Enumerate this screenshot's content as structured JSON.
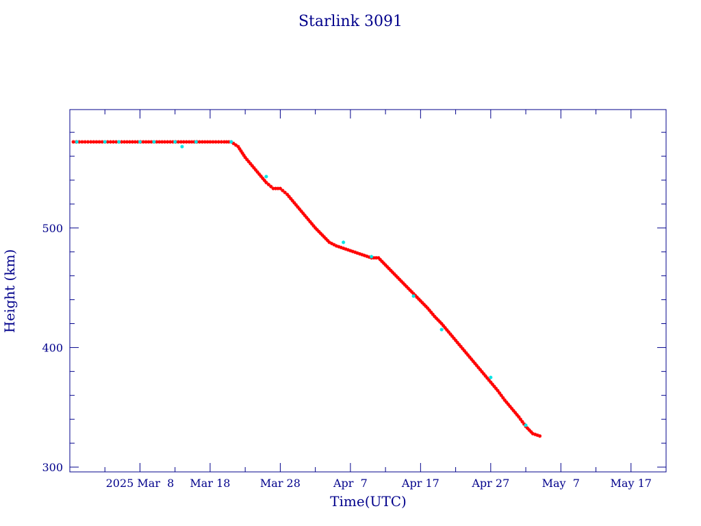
{
  "chart_data": {
    "type": "line",
    "title": "Starlink 3091",
    "xlabel": "Time(UTC)",
    "ylabel": "Height (km)",
    "x_tick_labels": [
      "2025 Mar  8",
      "Mar 18",
      "Mar 28",
      "Apr  7",
      "Apr 17",
      "Apr 27",
      "May  7",
      "May 17"
    ],
    "x_ticks": [
      "2025-03-08",
      "2025-03-18",
      "2025-03-28",
      "2025-04-07",
      "2025-04-17",
      "2025-04-27",
      "2025-05-07",
      "2025-05-17"
    ],
    "x_minor_ticks": [
      "2025-03-03",
      "2025-03-13",
      "2025-03-23",
      "2025-04-02",
      "2025-04-12",
      "2025-04-22",
      "2025-05-02",
      "2025-05-12"
    ],
    "xlim": [
      "2025-02-26",
      "2025-05-22"
    ],
    "y_tick_labels": [
      "300",
      "400",
      "500"
    ],
    "y_ticks": [
      300,
      400,
      500
    ],
    "ylim": [
      296,
      599
    ],
    "grid": false,
    "colors": {
      "axes": "#00008b",
      "line": "#a0148c",
      "primary_marker": "#ff0000",
      "secondary_marker": "#00e5e5"
    },
    "series": [
      {
        "x": [
          "2025-02-26T12:00",
          "2025-03-01",
          "2025-03-05",
          "2025-03-10",
          "2025-03-15",
          "2025-03-18",
          "2025-03-20",
          "2025-03-21",
          "2025-03-22",
          "2025-03-23",
          "2025-03-24",
          "2025-03-25",
          "2025-03-26",
          "2025-03-27",
          "2025-03-28",
          "2025-03-29",
          "2025-03-30",
          "2025-03-31",
          "2025-04-01",
          "2025-04-02",
          "2025-04-03",
          "2025-04-04",
          "2025-04-05",
          "2025-04-06",
          "2025-04-07",
          "2025-04-08",
          "2025-04-09",
          "2025-04-10",
          "2025-04-11",
          "2025-04-12",
          "2025-04-13",
          "2025-04-14",
          "2025-04-15",
          "2025-04-16",
          "2025-04-17",
          "2025-04-18",
          "2025-04-19",
          "2025-04-20",
          "2025-04-21",
          "2025-04-22",
          "2025-04-23",
          "2025-04-24",
          "2025-04-25",
          "2025-04-26",
          "2025-04-27",
          "2025-04-28",
          "2025-04-29",
          "2025-04-30",
          "2025-05-01",
          "2025-05-02",
          "2025-05-03",
          "2025-05-04"
        ],
        "y": [
          572,
          572,
          572,
          572,
          572,
          572,
          572,
          572,
          568,
          559,
          552,
          545,
          538,
          533,
          533,
          528,
          521,
          514,
          507,
          500,
          494,
          488,
          485,
          483,
          481,
          479,
          477,
          475,
          475,
          469,
          463,
          457,
          451,
          445,
          439,
          433,
          426,
          420,
          413,
          406,
          399,
          392,
          385,
          378,
          371,
          364,
          356,
          349,
          342,
          334,
          328,
          326
        ]
      }
    ],
    "secondary_points": {
      "x": [
        "2025-02-27",
        "2025-03-03",
        "2025-03-05",
        "2025-03-08",
        "2025-03-10",
        "2025-03-13",
        "2025-03-14",
        "2025-03-16",
        "2025-03-21",
        "2025-03-26",
        "2025-04-06",
        "2025-04-10",
        "2025-04-16",
        "2025-04-20",
        "2025-04-27",
        "2025-05-02"
      ],
      "y": [
        572,
        572,
        572,
        572,
        572,
        572,
        568,
        572,
        572,
        543,
        488,
        476,
        443,
        415,
        375,
        335
      ]
    }
  }
}
